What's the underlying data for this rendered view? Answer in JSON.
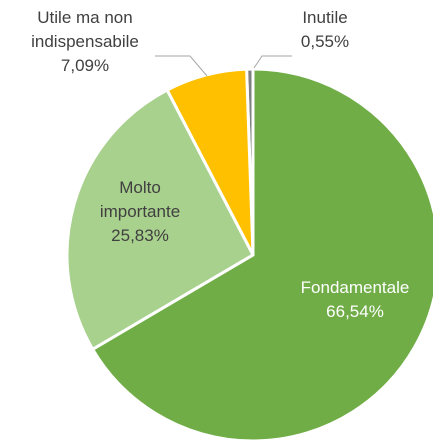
{
  "chart_data": {
    "type": "pie",
    "categories": [
      "Fondamentale",
      "Molto importante",
      "Utile ma non indispensabile",
      "Inutile"
    ],
    "values": [
      66.54,
      25.83,
      7.09,
      0.55
    ],
    "value_labels": [
      "66,54%",
      "25,83%",
      "7,09%",
      "0,55%"
    ],
    "colors": [
      "#70ad47",
      "#a9d18e",
      "#ffc000",
      "#7f7f7f"
    ]
  }
}
